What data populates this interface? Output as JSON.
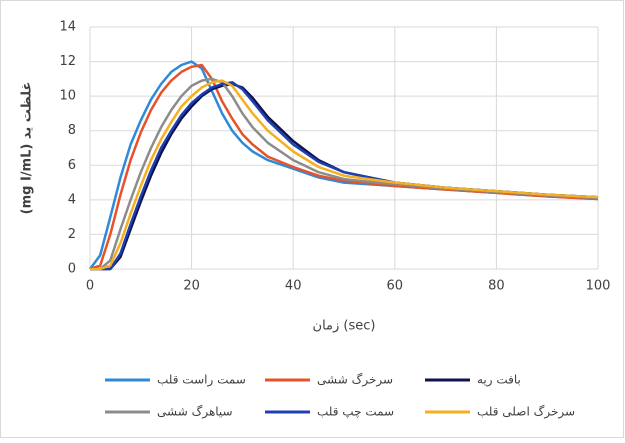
{
  "chart_data": {
    "type": "line",
    "y_label": "(mg I/mL) غلظت ید",
    "x_label": "زمان (sec)",
    "x": [
      0,
      2,
      4,
      6,
      8,
      10,
      12,
      14,
      16,
      18,
      20,
      22,
      24,
      26,
      28,
      30,
      32,
      35,
      40,
      45,
      50,
      60,
      70,
      80,
      90,
      100
    ],
    "series": [
      {
        "name": "سمت راست قلب",
        "color": "#2e8ad8",
        "values": [
          0,
          0.8,
          3,
          5.3,
          7.2,
          8.6,
          9.8,
          10.7,
          11.4,
          11.8,
          12,
          11.6,
          10.3,
          9.0,
          8.0,
          7.3,
          6.8,
          6.3,
          5.8,
          5.3,
          5.0,
          4.8,
          4.6,
          4.4,
          4.2,
          4.05
        ]
      },
      {
        "name": "سرخرگ ششی",
        "color": "#e8522a",
        "values": [
          0,
          0.2,
          2,
          4.3,
          6.3,
          7.9,
          9.2,
          10.2,
          10.9,
          11.4,
          11.7,
          11.8,
          11.0,
          9.7,
          8.7,
          7.8,
          7.2,
          6.5,
          5.9,
          5.4,
          5.1,
          4.8,
          4.6,
          4.4,
          4.2,
          4.05
        ]
      },
      {
        "name": "بافت ریه",
        "color": "#0d1250",
        "values": [
          0,
          0,
          0,
          0.7,
          2.3,
          3.9,
          5.4,
          6.7,
          7.8,
          8.7,
          9.4,
          10.0,
          10.4,
          10.6,
          10.7,
          10.5,
          9.9,
          8.8,
          7.4,
          6.3,
          5.6,
          5.0,
          4.7,
          4.5,
          4.3,
          4.15
        ]
      },
      {
        "name": "سیاهرگ ششی",
        "color": "#8c8c8c",
        "values": [
          0,
          0,
          0.5,
          2.3,
          4,
          5.6,
          7,
          8.2,
          9.2,
          10,
          10.6,
          10.9,
          11,
          10.8,
          10.0,
          9.0,
          8.2,
          7.3,
          6.3,
          5.6,
          5.2,
          4.9,
          4.65,
          4.45,
          4.25,
          4.1
        ]
      },
      {
        "name": "سمت چپ قلب",
        "color": "#1f3fb0",
        "values": [
          0,
          0,
          0,
          0.9,
          2.6,
          4.2,
          5.7,
          7.0,
          8.0,
          8.9,
          9.6,
          10.1,
          10.5,
          10.7,
          10.8,
          10.4,
          9.7,
          8.6,
          7.2,
          6.2,
          5.6,
          5.0,
          4.7,
          4.5,
          4.3,
          4.15
        ]
      },
      {
        "name": "سرخرگ اصلی قلب",
        "color": "#f5b020",
        "values": [
          0,
          0,
          0.2,
          1.5,
          3.2,
          4.8,
          6.3,
          7.5,
          8.5,
          9.4,
          10.0,
          10.5,
          10.8,
          10.9,
          10.6,
          9.8,
          9.0,
          8.0,
          6.8,
          5.9,
          5.4,
          5.0,
          4.7,
          4.5,
          4.3,
          4.15
        ]
      }
    ],
    "xlim": [
      0,
      100
    ],
    "xticks": [
      0,
      20,
      40,
      60,
      80,
      100
    ],
    "ylim": [
      0,
      14
    ],
    "yticks": [
      0,
      2,
      4,
      6,
      8,
      10,
      12,
      14
    ],
    "grid": true
  }
}
